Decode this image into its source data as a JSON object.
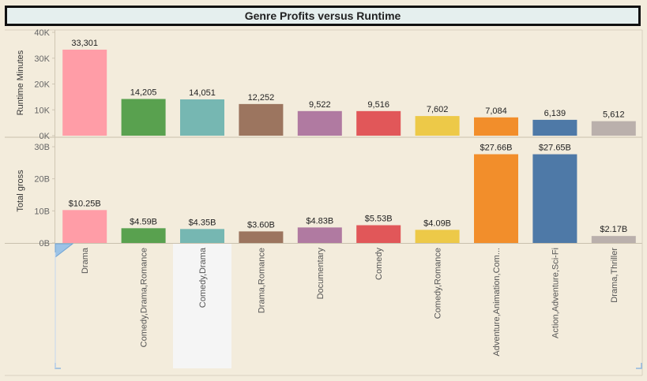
{
  "chart_data": {
    "title": "Genre Profits versus Runtime",
    "type": "bar",
    "categories": [
      "Drama",
      "Comedy,Drama,Romance",
      "Comedy,Drama",
      "Drama,Romance",
      "Documentary",
      "Comedy",
      "Comedy,Romance",
      "Adventure,Animation,Com...",
      "Action,Adventure,Sci-Fi",
      "Drama,Thriller"
    ],
    "highlighted_category": "Comedy,Drama",
    "colors": [
      "#ff9da7",
      "#59a14f",
      "#76b7b2",
      "#9c755f",
      "#b07aa1",
      "#e15759",
      "#edc948",
      "#f28e2b",
      "#4e79a7",
      "#bab0ac"
    ],
    "panels": [
      {
        "ylabel": "Runtime Minutes",
        "ylim": [
          0,
          40000
        ],
        "ticks": [
          0,
          10000,
          20000,
          30000,
          40000
        ],
        "tick_labels": [
          "0K",
          "10K",
          "20K",
          "30K",
          "40K"
        ],
        "values": [
          33301,
          14205,
          14051,
          12252,
          9522,
          9516,
          7602,
          7084,
          6139,
          5612
        ],
        "value_labels": [
          "33,301",
          "14,205",
          "14,051",
          "12,252",
          "9,522",
          "9,516",
          "7,602",
          "7,084",
          "6,139",
          "5,612"
        ]
      },
      {
        "ylabel": "Total gross",
        "ylim": [
          0,
          30000000000
        ],
        "ticks": [
          0,
          10000000000,
          20000000000,
          30000000000
        ],
        "tick_labels": [
          "0B",
          "10B",
          "20B",
          "30B"
        ],
        "values": [
          10250000000,
          4590000000,
          4350000000,
          3600000000,
          4830000000,
          5530000000,
          4090000000,
          27660000000,
          27650000000,
          2170000000
        ],
        "value_labels": [
          "$10.25B",
          "$4.59B",
          "$4.35B",
          "$3.60B",
          "$4.83B",
          "$5.53B",
          "$4.09B",
          "$27.66B",
          "$27.65B",
          "$2.17B"
        ]
      }
    ]
  }
}
